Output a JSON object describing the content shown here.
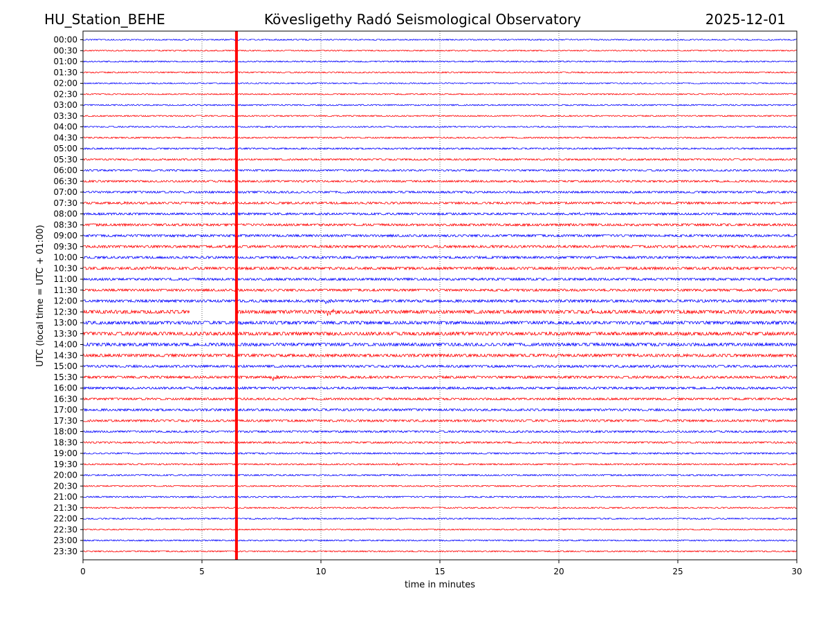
{
  "header": {
    "station": "HU_Station_BEHE",
    "observatory": "Kövesligethy Radó Seismological Observatory",
    "date": "2025-12-01"
  },
  "chart_data": {
    "type": "line",
    "title": "Kövesligethy Radó Seismological Observatory",
    "xlabel": "time in minutes",
    "ylabel": "UTC (local time = UTC + 01:00)",
    "xlim": [
      0,
      30
    ],
    "x_ticks": [
      0,
      5,
      10,
      15,
      20,
      25,
      30
    ],
    "x_tick_labels": [
      "0",
      "5",
      "10",
      "15",
      "20",
      "25",
      "30"
    ],
    "grid": "vertical dotted",
    "trace_colors": [
      "#0000ff",
      "#ff0000"
    ],
    "marker": {
      "x": 6.45,
      "color": "#ff0000"
    },
    "row_labels": [
      "00:00",
      "00:30",
      "01:00",
      "01:30",
      "02:00",
      "02:30",
      "03:00",
      "03:30",
      "04:00",
      "04:30",
      "05:00",
      "05:30",
      "06:00",
      "06:30",
      "07:00",
      "07:30",
      "08:00",
      "08:30",
      "09:00",
      "09:30",
      "10:00",
      "10:30",
      "11:00",
      "11:30",
      "12:00",
      "12:30",
      "13:00",
      "13:30",
      "14:00",
      "14:30",
      "15:00",
      "15:30",
      "16:00",
      "16:30",
      "17:00",
      "17:30",
      "18:00",
      "18:30",
      "19:00",
      "19:30",
      "20:00",
      "20:30",
      "21:00",
      "21:30",
      "22:00",
      "22:30",
      "23:00",
      "23:30"
    ],
    "noise_level": [
      0.8,
      0.8,
      0.9,
      0.9,
      0.8,
      0.8,
      0.9,
      0.9,
      0.9,
      1.0,
      1.1,
      1.2,
      1.2,
      1.3,
      1.4,
      1.5,
      1.5,
      1.6,
      1.6,
      1.7,
      1.6,
      1.8,
      1.6,
      1.6,
      1.8,
      2.4,
      2.2,
      2.4,
      2.2,
      2.0,
      1.6,
      1.7,
      1.6,
      1.5,
      1.5,
      1.5,
      1.3,
      1.2,
      1.1,
      1.0,
      1.0,
      0.9,
      1.0,
      0.9,
      0.9,
      0.8,
      0.9,
      0.9
    ],
    "gaps": [
      {
        "row": "12:30",
        "start": 4.5,
        "end": 6.4
      }
    ],
    "events": [
      {
        "row": "07:30",
        "x": 1.5,
        "amp": 2.0
      },
      {
        "row": "08:00",
        "x": 20.8,
        "amp": 3.5
      },
      {
        "row": "10:30",
        "x": 2.7,
        "amp": 4.5
      },
      {
        "row": "12:00",
        "x": 10.2,
        "amp": 3.0
      },
      {
        "row": "12:30",
        "x": 10.3,
        "amp": 8.0
      },
      {
        "row": "12:30",
        "x": 21.4,
        "amp": 4.0
      },
      {
        "row": "14:30",
        "x": 19.8,
        "amp": 3.0
      },
      {
        "row": "14:30",
        "x": 23.2,
        "amp": 3.5
      },
      {
        "row": "15:00",
        "x": 23.8,
        "amp": 2.5
      },
      {
        "row": "15:30",
        "x": 7.9,
        "amp": 7.0
      },
      {
        "row": "17:30",
        "x": 2.8,
        "amp": 2.5
      },
      {
        "row": "19:30",
        "x": 13.2,
        "amp": 2.0
      }
    ]
  }
}
